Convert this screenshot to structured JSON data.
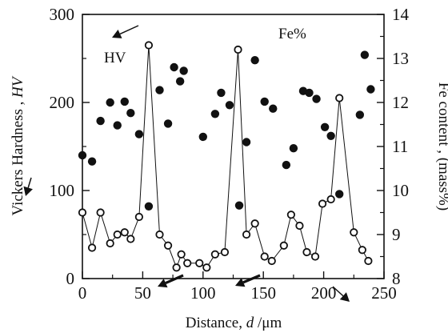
{
  "chart_data": {
    "type": "scatter",
    "xlabel_prefix": "Distance, ",
    "xlabel_var": "d",
    "xlabel_unit": " /μm",
    "ylabel_left_prefix": "Vickers Hardness , ",
    "ylabel_left_var": "HV",
    "ylabel_right": "Fe content , (mass%)",
    "xlim": [
      0,
      250
    ],
    "ylim_left": [
      0,
      300
    ],
    "ylim_right": [
      8,
      14
    ],
    "x_ticks": [
      "0",
      "50",
      "100",
      "150",
      "200",
      "250"
    ],
    "y_left_ticks": [
      "0",
      "100",
      "200",
      "300"
    ],
    "y_right_ticks": [
      "8",
      "9",
      "10",
      "11",
      "12",
      "13",
      "14"
    ],
    "annotations": {
      "hv": "HV",
      "fe": "Fe%"
    },
    "series": [
      {
        "axis": "left",
        "marker": "filled-circle",
        "points": [
          [
            0,
            140
          ],
          [
            8,
            133
          ],
          [
            15,
            179
          ],
          [
            23,
            200
          ],
          [
            29,
            174
          ],
          [
            35,
            201
          ],
          [
            40,
            188
          ],
          [
            47,
            164
          ],
          [
            55,
            82
          ],
          [
            64,
            214
          ],
          [
            71,
            176
          ],
          [
            76,
            240
          ],
          [
            81,
            224
          ],
          [
            84,
            236
          ],
          [
            100,
            161
          ],
          [
            110,
            187
          ],
          [
            115,
            211
          ],
          [
            122,
            197
          ],
          [
            130,
            83
          ],
          [
            136,
            155
          ],
          [
            143,
            248
          ],
          [
            151,
            201
          ],
          [
            158,
            193
          ],
          [
            169,
            129
          ],
          [
            175,
            148
          ],
          [
            183,
            213
          ],
          [
            188,
            211
          ],
          [
            194,
            204
          ],
          [
            201,
            172
          ],
          [
            206,
            162
          ],
          [
            213,
            96
          ],
          [
            230,
            186
          ],
          [
            234,
            254
          ],
          [
            239,
            215
          ]
        ]
      },
      {
        "axis": "right",
        "marker": "open-circle",
        "connected": true,
        "points": [
          [
            0,
            9.5
          ],
          [
            8,
            8.7
          ],
          [
            15,
            9.5
          ],
          [
            23,
            8.8
          ],
          [
            29,
            9.0
          ],
          [
            35,
            9.05
          ],
          [
            40,
            8.9
          ],
          [
            47,
            9.4
          ],
          [
            55,
            13.3
          ],
          [
            64,
            9.0
          ],
          [
            71,
            8.75
          ],
          [
            78,
            8.25
          ],
          [
            82,
            8.55
          ],
          [
            87,
            8.35
          ],
          [
            97,
            8.35
          ],
          [
            103,
            8.25
          ],
          [
            110,
            8.55
          ],
          [
            118,
            8.6
          ],
          [
            129,
            13.2
          ],
          [
            136,
            9.0
          ],
          [
            143,
            9.25
          ],
          [
            151,
            8.5
          ],
          [
            157,
            8.4
          ],
          [
            167,
            8.75
          ],
          [
            173,
            9.45
          ],
          [
            180,
            9.2
          ],
          [
            186,
            8.6
          ],
          [
            193,
            8.5
          ],
          [
            199,
            9.7
          ],
          [
            206,
            9.8
          ],
          [
            213,
            12.1
          ],
          [
            225,
            9.05
          ],
          [
            232,
            8.65
          ],
          [
            237,
            8.4
          ]
        ]
      }
    ],
    "arrows": [
      {
        "from": [
          39,
          222
        ],
        "to": [
          32,
          245
        ]
      },
      {
        "from": [
          173,
          32
        ],
        "to": [
          140,
          47
        ]
      },
      {
        "from": [
          229,
          344
        ],
        "to": [
          197,
          358
        ]
      },
      {
        "from": [
          325,
          344
        ],
        "to": [
          294,
          357
        ]
      },
      {
        "from": [
          416,
          358
        ],
        "to": [
          437,
          377
        ]
      }
    ]
  }
}
